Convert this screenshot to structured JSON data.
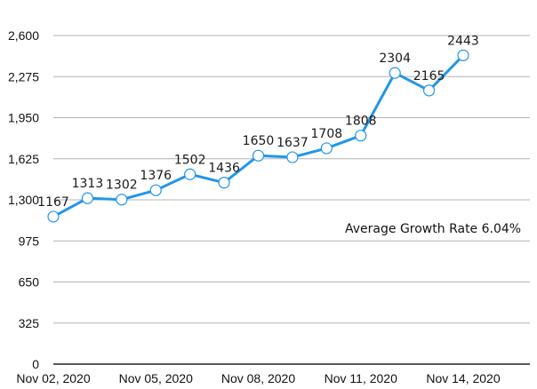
{
  "chart_data": {
    "type": "line",
    "x": [
      "Nov 02, 2020",
      "Nov 03, 2020",
      "Nov 04, 2020",
      "Nov 05, 2020",
      "Nov 06, 2020",
      "Nov 07, 2020",
      "Nov 08, 2020",
      "Nov 09, 2020",
      "Nov 10, 2020",
      "Nov 11, 2020",
      "Nov 12, 2020",
      "Nov 13, 2020",
      "Nov 14, 2020"
    ],
    "x_tick_labels": [
      "Nov 02, 2020",
      "Nov 05, 2020",
      "Nov 08, 2020",
      "Nov 11, 2020",
      "Nov 14, 2020"
    ],
    "series": [
      {
        "values": [
          1167,
          1313,
          1302,
          1376,
          1502,
          1436,
          1650,
          1637,
          1708,
          1808,
          2304,
          2165,
          2443
        ]
      }
    ],
    "data_labels": [
      "1167",
      "1313",
      "1302",
      "1376",
      "1502",
      "1436",
      "1650",
      "1637",
      "1708",
      "1808",
      "2304",
      "2165",
      "2443"
    ],
    "ylim": [
      0,
      2600
    ],
    "y_ticks": [
      0,
      325,
      650,
      975,
      1300,
      1625,
      1950,
      2275,
      2600
    ],
    "y_tick_labels": [
      "0",
      "325",
      "650",
      "975",
      "1,300",
      "1,625",
      "1,950",
      "2,275",
      "2,600"
    ],
    "grid": true,
    "annotation": "Average Growth Rate 6.04%",
    "colors": {
      "line": "#2196e8",
      "point_stroke": "#2196e8",
      "grid": "#b4b4b4"
    }
  }
}
